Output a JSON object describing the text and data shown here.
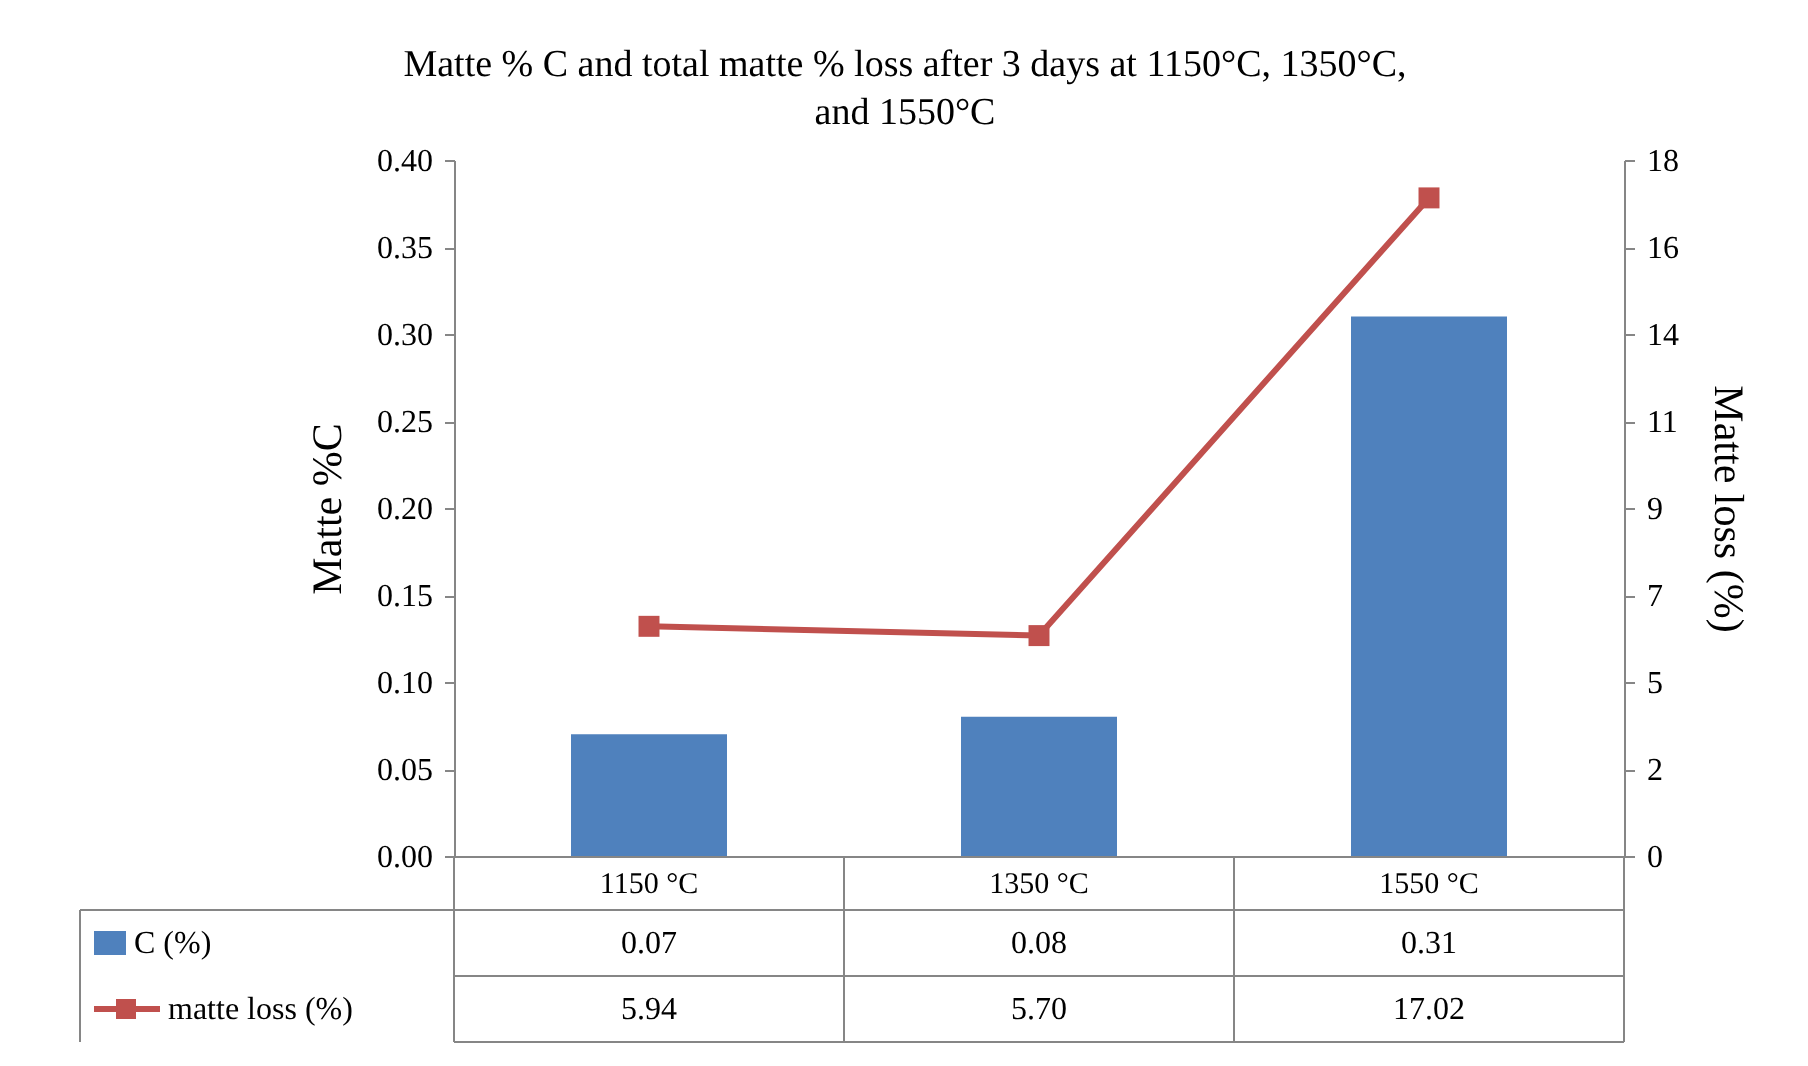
{
  "chart_data": {
    "type": "bar",
    "title": "Matte % C and total matte % loss  after 3 days at 1150°C, 1350°C, and 1550°C",
    "ylabel": "Matte %C",
    "y2label": "Matte loss (%)",
    "categories": [
      "1150 °C",
      "1350 °C",
      "1550 °C"
    ],
    "series": [
      {
        "name": "C (%)",
        "color": "#4f81bd",
        "values": [
          0.07,
          0.08,
          0.31
        ],
        "value_labels": [
          "0.07",
          "0.08",
          "0.31"
        ]
      },
      {
        "name": "matte loss (%)",
        "type": "line",
        "axis": "y2",
        "color": "#c0504d",
        "values": [
          5.94,
          5.7,
          17.02
        ],
        "value_labels": [
          "5.94",
          "5.70",
          "17.02"
        ]
      }
    ],
    "ylim": [
      0,
      0.4
    ],
    "yticks": [
      {
        "value": 0,
        "label": "0.00"
      },
      {
        "value": 0.05,
        "label": "0.05"
      },
      {
        "value": 0.1,
        "label": "0.10"
      },
      {
        "value": 0.15,
        "label": "0.15"
      },
      {
        "value": 0.2,
        "label": "0.20"
      },
      {
        "value": 0.25,
        "label": "0.25"
      },
      {
        "value": 0.3,
        "label": "0.30"
      },
      {
        "value": 0.35,
        "label": "0.35"
      },
      {
        "value": 0.4,
        "label": "0.40"
      }
    ],
    "y2lim": [
      0,
      18
    ],
    "y2ticks": [
      0,
      {
        "value": 2.25,
        "label": "2"
      },
      {
        "value": 4.5,
        "label": "5"
      },
      {
        "value": 6.75,
        "label": "7"
      },
      9,
      {
        "value": 11.25,
        "label": "11"
      },
      {
        "value": 13.5,
        "label": "14"
      },
      {
        "value": 15.75,
        "label": "16"
      },
      18
    ],
    "grid": false,
    "legend": "bottom",
    "marker": "square",
    "line_style": "solid"
  }
}
